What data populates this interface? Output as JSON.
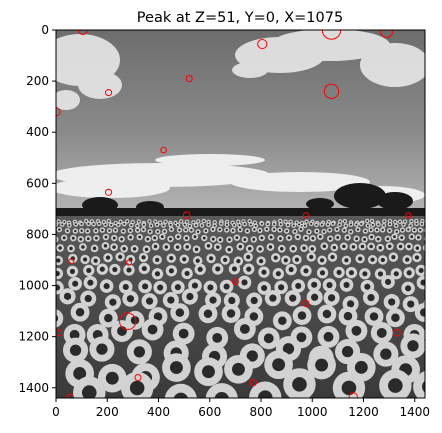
{
  "chart_data": {
    "type": "image",
    "title": "Peak at Z=51, Y=0, X=1075",
    "image_extent": {
      "x": [
        0,
        1440
      ],
      "y": [
        0,
        1440
      ]
    },
    "x_ticks": [
      0,
      200,
      400,
      600,
      800,
      1000,
      1200,
      1400
    ],
    "y_ticks": [
      0,
      200,
      400,
      600,
      800,
      1000,
      1200,
      1400
    ],
    "y_axis_inverted": true,
    "colormap": "gray",
    "marker_color": "#ff0000",
    "peaks": [
      {
        "x": 105,
        "y": 0,
        "r": 18
      },
      {
        "x": 1075,
        "y": 0,
        "r": 36
      },
      {
        "x": 1290,
        "y": 5,
        "r": 24
      },
      {
        "x": 805,
        "y": 55,
        "r": 18
      },
      {
        "x": 520,
        "y": 190,
        "r": 12
      },
      {
        "x": 205,
        "y": 245,
        "r": 12
      },
      {
        "x": 1075,
        "y": 240,
        "r": 28
      },
      {
        "x": 0,
        "y": 320,
        "r": 16
      },
      {
        "x": 420,
        "y": 470,
        "r": 11
      },
      {
        "x": 205,
        "y": 635,
        "r": 12
      },
      {
        "x": 510,
        "y": 725,
        "r": 13
      },
      {
        "x": 975,
        "y": 725,
        "r": 10
      },
      {
        "x": 1375,
        "y": 725,
        "r": 10
      },
      {
        "x": 60,
        "y": 905,
        "r": 10
      },
      {
        "x": 285,
        "y": 910,
        "r": 10
      },
      {
        "x": 700,
        "y": 985,
        "r": 12
      },
      {
        "x": 975,
        "y": 1070,
        "r": 12
      },
      {
        "x": 280,
        "y": 1140,
        "r": 32
      },
      {
        "x": 10,
        "y": 1185,
        "r": 12
      },
      {
        "x": 1330,
        "y": 1185,
        "r": 13
      },
      {
        "x": 320,
        "y": 1360,
        "r": 12
      },
      {
        "x": 770,
        "y": 1380,
        "r": 12
      },
      {
        "x": 1160,
        "y": 1435,
        "r": 16
      },
      {
        "x": 55,
        "y": 1440,
        "r": 14
      }
    ]
  }
}
